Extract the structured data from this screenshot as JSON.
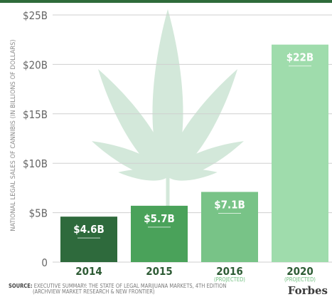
{
  "chart_data": {
    "type": "bar",
    "ylabel": "NATIONAL LEGAL SALES OF CANNIBIS (IN BILLIONS OF DOLLARS)",
    "ylim": [
      0,
      25
    ],
    "yticks": [
      "0",
      "$5B",
      "$10B",
      "$15B",
      "$20B",
      "$25B"
    ],
    "grid": true,
    "categories": [
      "2014",
      "2015",
      "2016",
      "2020"
    ],
    "subcategories": [
      "",
      "",
      "(PROJECTED)",
      "(PROJECTED)"
    ],
    "values": [
      4.6,
      5.7,
      7.1,
      22
    ],
    "value_labels": [
      "$4.6B",
      "$5.7B",
      "$7.1B",
      "$22B"
    ],
    "colors": [
      "#2e6a3c",
      "#4aa25a",
      "#78c387",
      "#9fdcac"
    ]
  },
  "source": {
    "label": "SOURCE:",
    "line1": "EXECUTIVE SUMMARY: THE STATE OF LEGAL MARIJUANA MARKETS, 4TH EDITION",
    "line2": "(ARCHVIEW MARKET RESEARCH & NEW FRONTIER)"
  },
  "brand": "Forbes",
  "theme": {
    "year_color": "#2f5c36",
    "projected_color": "#6fbf7e",
    "leaf_color": "#d3e8da"
  }
}
